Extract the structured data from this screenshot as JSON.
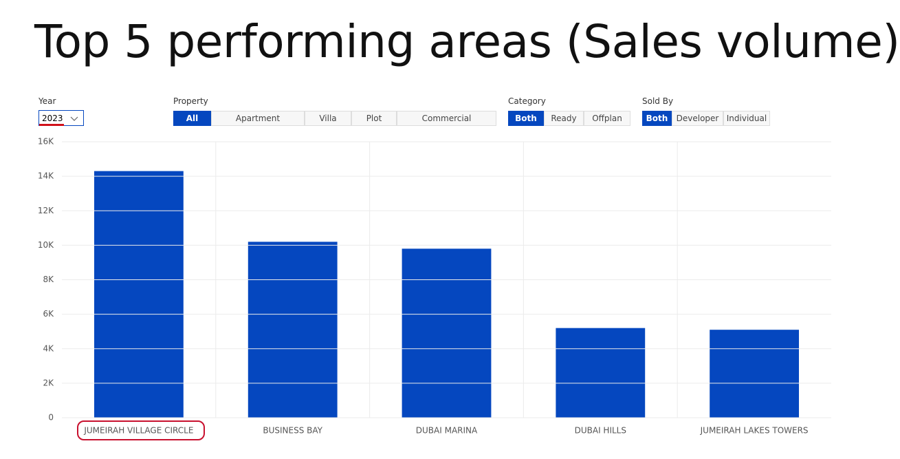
{
  "title": "Top 5 performing areas (Sales volume)",
  "filters": {
    "year": {
      "label": "Year",
      "value": "2023"
    },
    "property": {
      "label": "Property",
      "options": [
        "All",
        "Apartment",
        "Villa",
        "Plot",
        "Commercial"
      ],
      "selected": 0
    },
    "category": {
      "label": "Category",
      "options": [
        "Both",
        "Ready",
        "Offplan"
      ],
      "selected": 0
    },
    "sold_by": {
      "label": "Sold By",
      "options": [
        "Both",
        "Developer",
        "Individual"
      ],
      "selected": 0
    }
  },
  "chart_data": {
    "type": "bar",
    "categories": [
      "JUMEIRAH VILLAGE CIRCLE",
      "BUSINESS BAY",
      "DUBAI MARINA",
      "DUBAI HILLS",
      "JUMEIRAH LAKES TOWERS"
    ],
    "values": [
      14300,
      10200,
      9800,
      5200,
      5100
    ],
    "color": "#0547bf",
    "ylim": [
      0,
      16000
    ],
    "yticks": [
      0,
      {
        "value": 2000,
        "label": "2K"
      },
      {
        "value": 4000,
        "label": "4K"
      },
      {
        "value": 6000,
        "label": "6K"
      },
      {
        "value": 8000,
        "label": "8K"
      },
      {
        "value": 10000,
        "label": "10K"
      },
      {
        "value": 12000,
        "label": "12K"
      },
      {
        "value": 14000,
        "label": "14K"
      },
      {
        "value": 16000,
        "label": "16K"
      }
    ],
    "grid": true
  }
}
